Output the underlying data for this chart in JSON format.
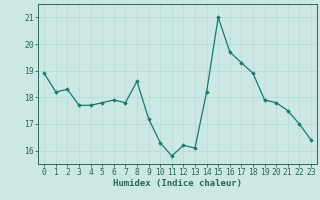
{
  "x": [
    0,
    1,
    2,
    3,
    4,
    5,
    6,
    7,
    8,
    9,
    10,
    11,
    12,
    13,
    14,
    15,
    16,
    17,
    18,
    19,
    20,
    21,
    22,
    23
  ],
  "y": [
    18.9,
    18.2,
    18.3,
    17.7,
    17.7,
    17.8,
    17.9,
    17.8,
    18.6,
    17.2,
    16.3,
    15.8,
    16.2,
    16.1,
    18.2,
    21.0,
    19.7,
    19.3,
    18.9,
    17.9,
    17.8,
    17.5,
    17.0,
    16.4
  ],
  "line_color": "#1a7a6e",
  "marker": "D",
  "markersize": 1.8,
  "linewidth": 0.9,
  "xlabel": "Humidex (Indice chaleur)",
  "xlim": [
    -0.5,
    23.5
  ],
  "ylim": [
    15.5,
    21.5
  ],
  "yticks": [
    16,
    17,
    18,
    19,
    20,
    21
  ],
  "xticks": [
    0,
    1,
    2,
    3,
    4,
    5,
    6,
    7,
    8,
    9,
    10,
    11,
    12,
    13,
    14,
    15,
    16,
    17,
    18,
    19,
    20,
    21,
    22,
    23
  ],
  "grid_color": "#b8ddd8",
  "bg_color": "#cce8e4",
  "axis_color": "#2d6655",
  "tick_color": "#2d6655",
  "xlabel_fontsize": 6.5,
  "tick_fontsize": 5.8
}
